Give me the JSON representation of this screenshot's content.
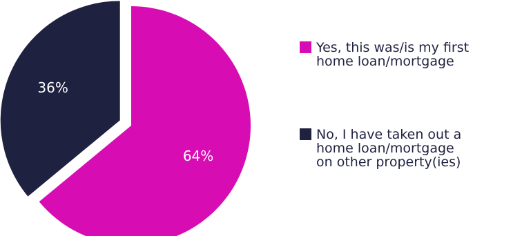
{
  "chart_data": {
    "type": "pie",
    "title": "",
    "slices": [
      {
        "label_lines": [
          "Yes, this was/is my first",
          "home loan/mortgage"
        ],
        "value": 64,
        "display": "64%",
        "color": "#d80cb3"
      },
      {
        "label_lines": [
          "No, I have taken out a",
          "home loan/mortgage",
          "on other property(ies)"
        ],
        "value": 36,
        "display": "36%",
        "color": "#1f2140"
      }
    ],
    "legend_position": "right",
    "exploded_slice": "No, I have taken out a home loan/mortgage on other property(ies)"
  }
}
